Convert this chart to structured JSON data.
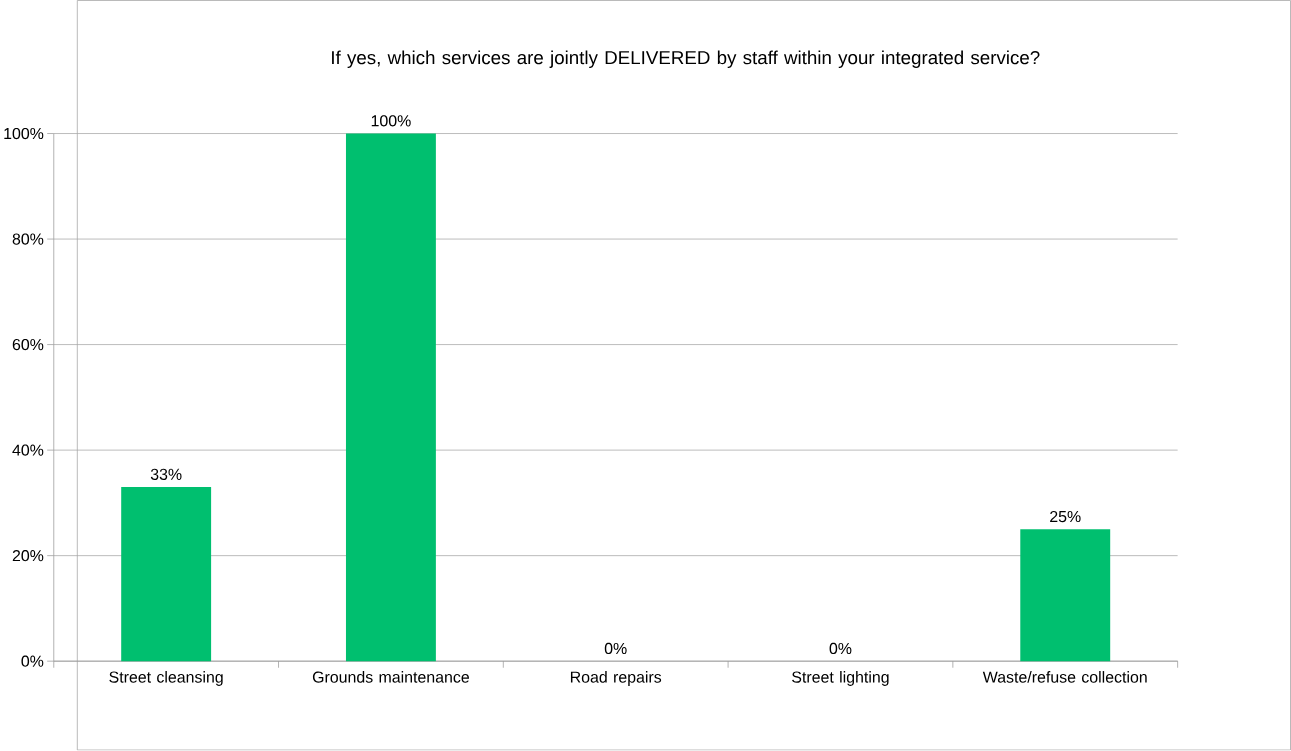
{
  "chart_data": {
    "type": "bar",
    "title": "If yes, which services are jointly DELIVERED by staff within your integrated service?",
    "categories": [
      "Street cleansing",
      "Grounds maintenance",
      "Road repairs",
      "Street lighting",
      "Waste/refuse collection"
    ],
    "values": [
      33,
      100,
      0,
      0,
      25
    ],
    "value_labels": [
      "33%",
      "100%",
      "0%",
      "0%",
      "25%"
    ],
    "color": "#00bf6f",
    "ylim": [
      0,
      100
    ],
    "yticks": [
      {
        "value": 0,
        "label": "0%"
      },
      {
        "value": 20,
        "label": "20%"
      },
      {
        "value": 40,
        "label": "40%"
      },
      {
        "value": 60,
        "label": "60%"
      },
      {
        "value": 80,
        "label": "80%"
      },
      {
        "value": 100,
        "label": "100%"
      }
    ],
    "grid": "y"
  }
}
